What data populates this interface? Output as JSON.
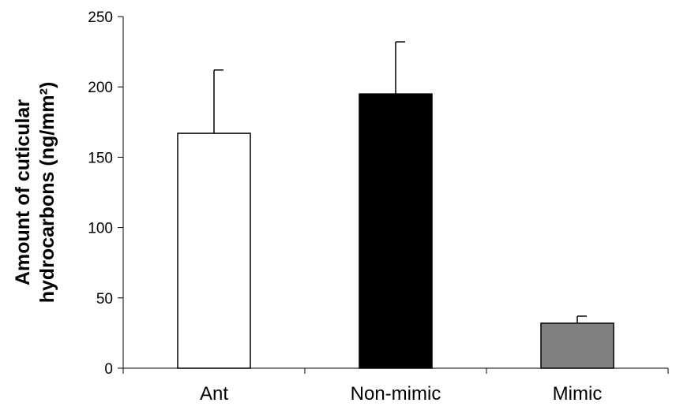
{
  "chart_data": {
    "type": "bar",
    "title": "",
    "xlabel": "",
    "ylabel_lines": [
      "Amount of cuticular",
      "hydrocarbons (ng/mm²)"
    ],
    "categories": [
      "Ant",
      "Non-mimic",
      "Mimic"
    ],
    "values": [
      167,
      195,
      32
    ],
    "error_upper": [
      212,
      232,
      37
    ],
    "bar_colors": [
      "#ffffff",
      "#000000",
      "#808080"
    ],
    "ylim": [
      0,
      250
    ],
    "yticks": [
      "0",
      "50",
      "100",
      "150",
      "200",
      "250"
    ],
    "grid": false,
    "legend": "none"
  }
}
